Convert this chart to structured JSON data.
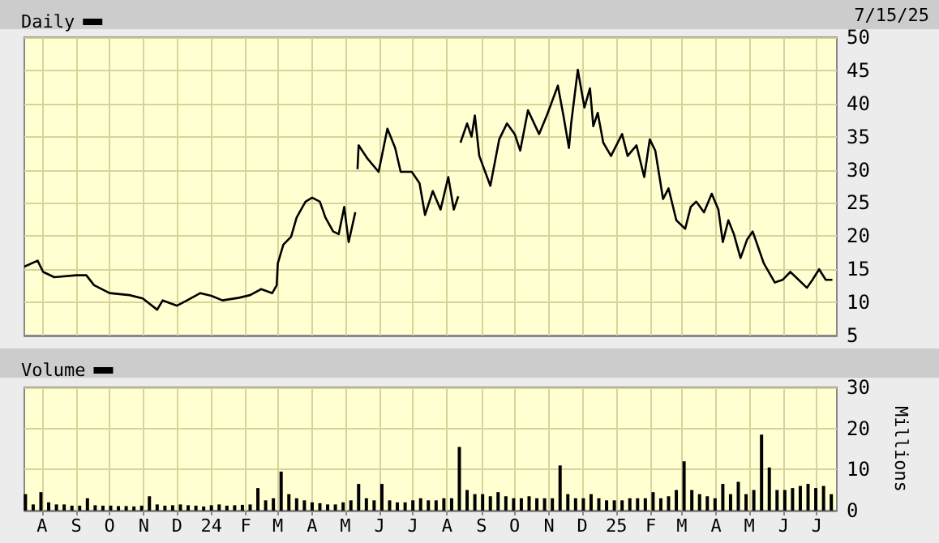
{
  "chart_data": [
    {
      "type": "line",
      "annotations": [
        "7/15/25"
      ],
      "legend": "top left",
      "grid": true,
      "tick_labels": "y",
      "xlim": [
        "2023-07-16",
        "2025-07-19"
      ],
      "ylim": [
        5,
        50
      ],
      "yticks": [
        5,
        10,
        15,
        20,
        25,
        30,
        35,
        40,
        45,
        50
      ],
      "xticks": [
        {
          "value": "2023-08-01",
          "label": null
        },
        {
          "value": "2023-09-01",
          "label": null
        },
        {
          "value": "2023-10-01",
          "label": null
        },
        {
          "value": "2023-11-01",
          "label": null
        },
        {
          "value": "2023-12-01",
          "label": null
        },
        {
          "value": "2024-01-01",
          "label": null
        },
        {
          "value": "2024-02-01",
          "label": null
        },
        {
          "value": "2024-03-01",
          "label": null
        },
        {
          "value": "2024-04-01",
          "label": null
        },
        {
          "value": "2024-05-01",
          "label": null
        },
        {
          "value": "2024-06-01",
          "label": null
        },
        {
          "value": "2024-07-01",
          "label": null
        },
        {
          "value": "2024-08-01",
          "label": null
        },
        {
          "value": "2024-09-01",
          "label": null
        },
        {
          "value": "2024-10-01",
          "label": null
        },
        {
          "value": "2024-11-01",
          "label": null
        },
        {
          "value": "2024-12-01",
          "label": null
        },
        {
          "value": "2025-01-01",
          "label": null
        },
        {
          "value": "2025-02-01",
          "label": null
        },
        {
          "value": "2025-03-01",
          "label": null
        },
        {
          "value": "2025-04-01",
          "label": null
        },
        {
          "value": "2025-05-01",
          "label": null
        },
        {
          "value": "2025-06-01",
          "label": null
        },
        {
          "value": "2025-07-01",
          "label": null
        }
      ],
      "series": [
        {
          "name": "Daily",
          "color": "#000000",
          "x": [
            "2023-07-16",
            "2023-07-28",
            "2023-08-02",
            "2023-08-12",
            "2023-09-01",
            "2023-09-10",
            "2023-09-17",
            "2023-10-01",
            "2023-10-19",
            "2023-10-31",
            "2023-11-13",
            "2023-11-18",
            "2023-12-01",
            "2023-12-10",
            "2023-12-22",
            "2024-01-01",
            "2024-01-11",
            "2024-01-26",
            "2024-02-05",
            "2024-02-15",
            "2024-02-25",
            "2024-02-29",
            "2024-03-01",
            "2024-03-06",
            "2024-03-13",
            "2024-03-18",
            "2024-03-26",
            "2024-04-01",
            "2024-04-08",
            "2024-04-13",
            "2024-04-20",
            "2024-04-25",
            "2024-04-30",
            "2024-05-04",
            "2024-05-10",
            "2024-05-11",
            "2024-05-12",
            "2024-05-13",
            "2024-05-21",
            "2024-05-31",
            "2024-06-03",
            "2024-06-08",
            "2024-06-15",
            "2024-06-20",
            "2024-06-30",
            "2024-07-07",
            "2024-07-12",
            "2024-07-19",
            "2024-07-26",
            "2024-08-02",
            "2024-08-07",
            "2024-08-11",
            "2024-08-12",
            "2024-08-13",
            "2024-08-19",
            "2024-08-23",
            "2024-08-26",
            "2024-08-30",
            "2024-09-09",
            "2024-09-17",
            "2024-09-24",
            "2024-10-01",
            "2024-10-06",
            "2024-10-13",
            "2024-10-23",
            "2024-10-30",
            "2024-11-09",
            "2024-11-14",
            "2024-11-19",
            "2024-11-21",
            "2024-11-27",
            "2024-12-03",
            "2024-12-08",
            "2024-12-11",
            "2024-12-15",
            "2024-12-20",
            "2024-12-27",
            "2025-01-06",
            "2025-01-11",
            "2025-01-19",
            "2025-01-26",
            "2025-01-31",
            "2025-02-05",
            "2025-02-12",
            "2025-02-17",
            "2025-02-24",
            "2025-03-04",
            "2025-03-09",
            "2025-03-14",
            "2025-03-21",
            "2025-03-28",
            "2025-04-03",
            "2025-04-07",
            "2025-04-12",
            "2025-04-17",
            "2025-04-23",
            "2025-04-29",
            "2025-05-04",
            "2025-05-09",
            "2025-05-14",
            "2025-05-24",
            "2025-05-31",
            "2025-06-07",
            "2025-06-12",
            "2025-06-22",
            "2025-06-27",
            "2025-07-03",
            "2025-07-09",
            "2025-07-15"
          ],
          "values": [
            15.4,
            16.3,
            14.6,
            13.8,
            14.1,
            14.1,
            12.6,
            11.4,
            11.1,
            10.6,
            8.9,
            10.3,
            9.5,
            10.3,
            11.4,
            11.0,
            10.3,
            10.7,
            11.1,
            12.0,
            11.4,
            12.6,
            15.9,
            18.7,
            19.9,
            22.8,
            25.2,
            25.8,
            25.2,
            22.8,
            20.7,
            20.3,
            24.4,
            19.1,
            23.6,
            null,
            30.1,
            33.7,
            31.7,
            29.7,
            32.1,
            36.2,
            33.3,
            29.7,
            29.7,
            28.0,
            23.2,
            26.8,
            24.0,
            28.9,
            24.0,
            26.0,
            null,
            34.1,
            37.0,
            35.0,
            38.2,
            32.1,
            27.6,
            34.6,
            37.0,
            35.4,
            32.9,
            39.0,
            35.4,
            38.2,
            42.7,
            38.2,
            33.3,
            37.0,
            45.1,
            39.4,
            42.3,
            36.6,
            38.6,
            34.1,
            32.1,
            35.4,
            32.1,
            33.7,
            28.9,
            34.6,
            32.9,
            25.6,
            27.2,
            22.4,
            21.1,
            24.4,
            25.2,
            23.6,
            26.4,
            24.0,
            19.1,
            22.4,
            20.3,
            16.7,
            19.5,
            20.7,
            18.3,
            15.9,
            13.0,
            13.4,
            14.6,
            13.8,
            12.2,
            13.4,
            15.0,
            13.4,
            13.4
          ]
        }
      ]
    },
    {
      "type": "bar",
      "ylabel": "Millions",
      "legend": "top left",
      "grid": true,
      "xlim": [
        "2023-07-16",
        "2025-07-19"
      ],
      "ylim": [
        0,
        30
      ],
      "yticks": [
        0,
        10,
        20,
        30
      ],
      "xticks": [
        {
          "value": "2023-08-01",
          "label": "A"
        },
        {
          "value": "2023-09-01",
          "label": "S"
        },
        {
          "value": "2023-10-01",
          "label": "O"
        },
        {
          "value": "2023-11-01",
          "label": "N"
        },
        {
          "value": "2023-12-01",
          "label": "D"
        },
        {
          "value": "2024-01-01",
          "label": "24"
        },
        {
          "value": "2024-02-01",
          "label": "F"
        },
        {
          "value": "2024-03-01",
          "label": "M"
        },
        {
          "value": "2024-04-01",
          "label": "A"
        },
        {
          "value": "2024-05-01",
          "label": "M"
        },
        {
          "value": "2024-06-01",
          "label": "J"
        },
        {
          "value": "2024-07-01",
          "label": "J"
        },
        {
          "value": "2024-08-01",
          "label": "A"
        },
        {
          "value": "2024-09-01",
          "label": "S"
        },
        {
          "value": "2024-10-01",
          "label": "O"
        },
        {
          "value": "2024-11-01",
          "label": "N"
        },
        {
          "value": "2024-12-01",
          "label": "D"
        },
        {
          "value": "2025-01-01",
          "label": "25"
        },
        {
          "value": "2025-02-01",
          "label": "F"
        },
        {
          "value": "2025-03-01",
          "label": "M"
        },
        {
          "value": "2025-04-01",
          "label": "A"
        },
        {
          "value": "2025-05-01",
          "label": "M"
        },
        {
          "value": "2025-06-01",
          "label": "J"
        },
        {
          "value": "2025-07-01",
          "label": "J"
        }
      ],
      "series": [
        {
          "name": "Volume",
          "color": "#000000",
          "x": [
            "2023-07-17",
            "2023-07-24",
            "2023-07-31",
            "2023-08-07",
            "2023-08-14",
            "2023-08-21",
            "2023-08-28",
            "2023-09-04",
            "2023-09-11",
            "2023-09-18",
            "2023-09-25",
            "2023-10-02",
            "2023-10-09",
            "2023-10-16",
            "2023-10-23",
            "2023-10-30",
            "2023-11-06",
            "2023-11-13",
            "2023-11-20",
            "2023-11-27",
            "2023-12-04",
            "2023-12-11",
            "2023-12-18",
            "2023-12-25",
            "2024-01-01",
            "2024-01-08",
            "2024-01-15",
            "2024-01-22",
            "2024-01-29",
            "2024-02-05",
            "2024-02-12",
            "2024-02-19",
            "2024-02-26",
            "2024-03-04",
            "2024-03-11",
            "2024-03-18",
            "2024-03-25",
            "2024-04-01",
            "2024-04-08",
            "2024-04-15",
            "2024-04-22",
            "2024-04-29",
            "2024-05-06",
            "2024-05-13",
            "2024-05-20",
            "2024-05-27",
            "2024-06-03",
            "2024-06-10",
            "2024-06-17",
            "2024-06-24",
            "2024-07-01",
            "2024-07-08",
            "2024-07-15",
            "2024-07-22",
            "2024-07-29",
            "2024-08-05",
            "2024-08-12",
            "2024-08-19",
            "2024-08-26",
            "2024-09-02",
            "2024-09-09",
            "2024-09-16",
            "2024-09-23",
            "2024-09-30",
            "2024-10-07",
            "2024-10-14",
            "2024-10-21",
            "2024-10-28",
            "2024-11-04",
            "2024-11-11",
            "2024-11-18",
            "2024-11-25",
            "2024-12-02",
            "2024-12-09",
            "2024-12-16",
            "2024-12-23",
            "2024-12-30",
            "2025-01-06",
            "2025-01-13",
            "2025-01-20",
            "2025-01-27",
            "2025-02-03",
            "2025-02-10",
            "2025-02-17",
            "2025-02-24",
            "2025-03-03",
            "2025-03-10",
            "2025-03-17",
            "2025-03-24",
            "2025-03-31",
            "2025-04-07",
            "2025-04-14",
            "2025-04-21",
            "2025-04-28",
            "2025-05-05",
            "2025-05-12",
            "2025-05-19",
            "2025-05-26",
            "2025-06-02",
            "2025-06-09",
            "2025-06-16",
            "2025-06-23",
            "2025-06-30",
            "2025-07-07",
            "2025-07-14"
          ],
          "values": [
            4,
            1.5,
            4.5,
            2,
            1.5,
            1.5,
            1.2,
            1.2,
            3,
            1.3,
            1.2,
            1.2,
            1.1,
            1.1,
            1.0,
            1.2,
            3.5,
            1.5,
            1.2,
            1.3,
            1.5,
            1.3,
            1.2,
            1.0,
            1.3,
            1.5,
            1.2,
            1.3,
            1.4,
            1.5,
            5.5,
            2.5,
            3,
            9.5,
            4,
            3,
            2.5,
            2,
            1.8,
            1.5,
            1.5,
            2,
            2.5,
            6.5,
            3,
            2.5,
            6.5,
            2.5,
            2,
            2,
            2.5,
            3,
            2.5,
            2.5,
            3,
            3,
            15.5,
            5,
            4,
            4,
            3.5,
            4.5,
            3.5,
            3,
            3,
            3.5,
            3,
            3,
            3,
            11,
            4,
            3,
            3,
            4,
            3,
            2.5,
            2.5,
            2.5,
            3,
            3,
            3,
            4.5,
            3,
            3.5,
            5,
            12,
            5,
            4,
            3.5,
            3,
            6.5,
            4,
            7,
            4,
            5,
            18.5,
            10.5,
            5,
            5,
            5.5,
            6,
            6.5,
            5.5,
            6,
            4
          ]
        }
      ]
    }
  ]
}
